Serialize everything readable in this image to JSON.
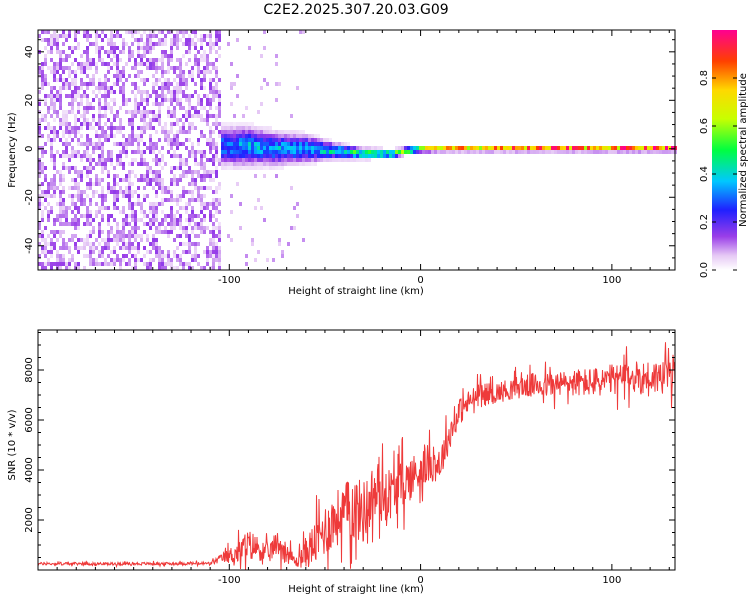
{
  "title": "C2E2.2025.307.20.03.G09",
  "chart_data": [
    {
      "type": "heatmap",
      "title": "C2E2.2025.307.20.03.G09",
      "xlabel": "Height of straight line (km)",
      "ylabel": "Frequency (Hz)",
      "xlim": [
        -200,
        133
      ],
      "ylim": [
        -50,
        49
      ],
      "xticks": [
        -100,
        0,
        100
      ],
      "xtick_labels": [
        "-100",
        "0",
        "100"
      ],
      "yticks": [
        40,
        20,
        0,
        -20,
        -40
      ],
      "ytick_labels": [
        "40",
        "20",
        "0",
        "-20",
        "-40"
      ],
      "colorbar": {
        "label": "Normalized spectral amplitude",
        "range": [
          0,
          1
        ],
        "ticks": [
          0.0,
          0.2,
          0.4,
          0.6,
          0.8
        ],
        "tick_labels": [
          "0.0",
          "0.2",
          "0.4",
          "0.6",
          "0.8"
        ]
      },
      "signal_ridge": {
        "x": [
          -105,
          -90,
          -75,
          -60,
          -45,
          -30,
          -15,
          0,
          15,
          30,
          60,
          100,
          133
        ],
        "frequency": [
          1,
          1,
          0,
          0,
          -1,
          -2,
          -2,
          0,
          0,
          0,
          0,
          0,
          0
        ],
        "amplitude": [
          0.3,
          0.35,
          0.35,
          0.35,
          0.4,
          0.5,
          0.6,
          0.7,
          0.8,
          0.85,
          0.9,
          0.95,
          1.0
        ],
        "spread_hz": [
          7,
          7,
          6,
          5,
          3,
          2,
          1.5,
          1.2,
          1,
          1,
          1,
          1,
          1
        ]
      },
      "noise_region_x": [
        -200,
        -105
      ]
    },
    {
      "type": "line",
      "xlabel": "Height of straight line (km)",
      "ylabel": "SNR (10 * v/v)",
      "xlim": [
        -200,
        133
      ],
      "ylim": [
        0,
        9600
      ],
      "xticks": [
        -100,
        0,
        100
      ],
      "xtick_labels": [
        "-100",
        "0",
        "100"
      ],
      "yticks": [
        2000,
        4000,
        6000,
        8000
      ],
      "ytick_labels": [
        "2000",
        "4000",
        "6000",
        "8000"
      ],
      "series": [
        {
          "name": "SNR",
          "color": "#ee3a3a",
          "x": [
            -200,
            -150,
            -110,
            -103,
            -95,
            -90,
            -85,
            -80,
            -75,
            -70,
            -65,
            -60,
            -55,
            -50,
            -45,
            -40,
            -35,
            -30,
            -25,
            -20,
            -15,
            -10,
            -5,
            0,
            5,
            10,
            15,
            20,
            25,
            30,
            40,
            50,
            60,
            70,
            80,
            90,
            100,
            110,
            120,
            133
          ],
          "values": [
            250,
            250,
            260,
            500,
            700,
            1000,
            900,
            600,
            1100,
            700,
            300,
            700,
            1100,
            1600,
            2000,
            2300,
            2500,
            2300,
            3000,
            3000,
            3100,
            3400,
            3700,
            4000,
            4300,
            4200,
            5400,
            6300,
            6700,
            7000,
            7100,
            7300,
            7400,
            7400,
            7500,
            7500,
            7600,
            7700,
            7700,
            7800
          ],
          "noise": [
            80,
            80,
            90,
            300,
            700,
            900,
            700,
            600,
            700,
            600,
            300,
            900,
            1300,
            1500,
            1600,
            1700,
            1900,
            1800,
            1700,
            1600,
            1500,
            1400,
            1300,
            1200,
            1100,
            1000,
            900,
            800,
            700,
            650,
            600,
            650,
            700,
            750,
            800,
            850,
            900,
            950,
            1000,
            1000
          ]
        }
      ]
    }
  ]
}
